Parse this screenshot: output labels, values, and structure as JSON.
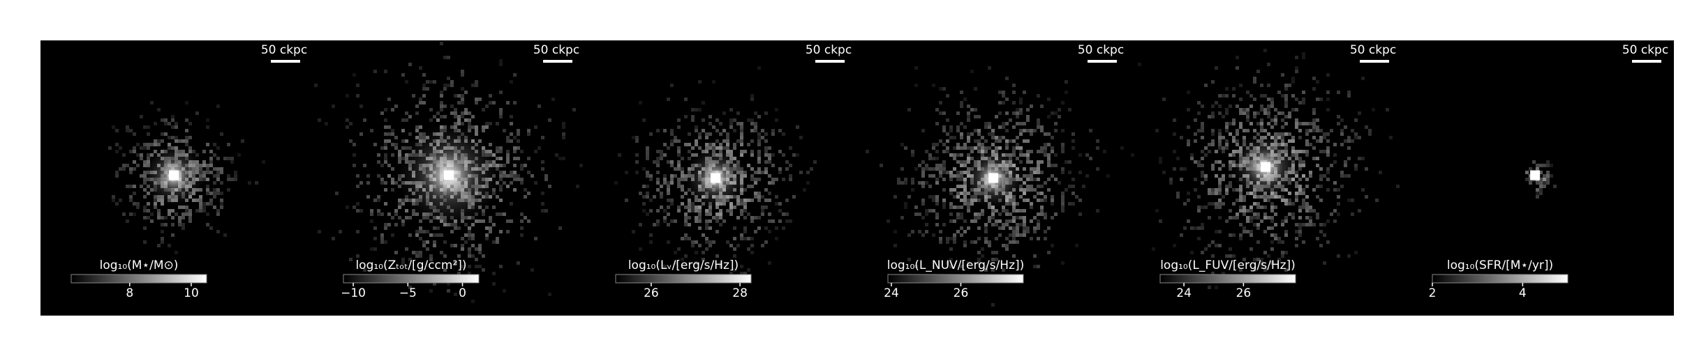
{
  "chart_data": [
    {
      "type": "image",
      "scalebar": "50 ckpc",
      "colorbar_label": "log₁₀(M⋆/M⊙)",
      "clim": [
        6.1,
        10.5
      ],
      "cticks": [
        8,
        10
      ]
    },
    {
      "type": "image",
      "scalebar": "50 ckpc",
      "colorbar_label": "log₁₀(Zₜₒₜ/[g/ccm²])",
      "clim": [
        -10.9,
        1.5
      ],
      "cticks": [
        {
          "value": -10,
          "label": "−10"
        },
        {
          "value": -5,
          "label": "−5"
        },
        0
      ]
    },
    {
      "type": "image",
      "scalebar": "50 ckpc",
      "colorbar_label": "log₁₀(Lᵥ/[erg/s/Hz])",
      "clim": [
        25.2,
        28.25
      ],
      "cticks": [
        26,
        28
      ]
    },
    {
      "type": "image",
      "scalebar": "50 ckpc",
      "colorbar_label": "log₁₀(L_NUV/[erg/s/Hz])",
      "clim": [
        23.9,
        27.8
      ],
      "cticks": [
        24,
        26
      ]
    },
    {
      "type": "image",
      "scalebar": "50 ckpc",
      "colorbar_label": "log₁₀(L_FUV/[erg/s/Hz])",
      "clim": [
        23.2,
        27.75
      ],
      "cticks": [
        24,
        26
      ]
    },
    {
      "type": "image",
      "scalebar": "50 ckpc",
      "colorbar_label": "log₁₀(SFR/[M⋆/yr])",
      "clim": [
        2,
        5
      ],
      "cticks": [
        2,
        4
      ]
    }
  ]
}
